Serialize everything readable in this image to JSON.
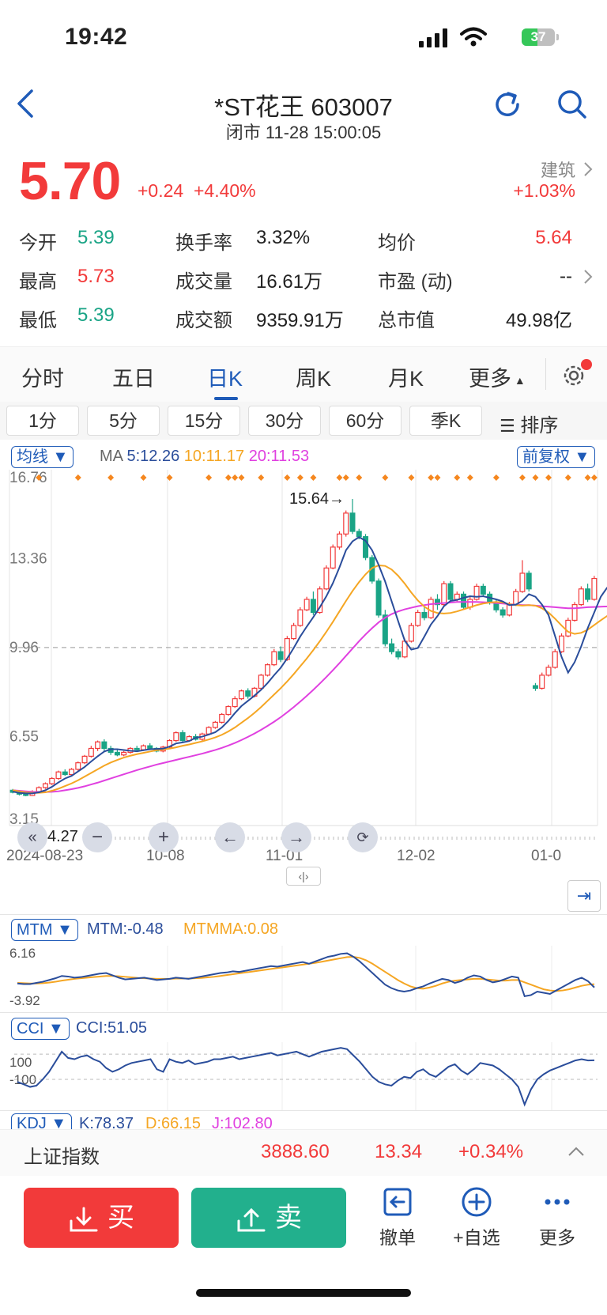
{
  "status_bar": {
    "time": "19:42",
    "battery": "37"
  },
  "header": {
    "title": "*ST花王 603007",
    "subtitle": "闭市 11-28 15:00:05"
  },
  "quote": {
    "price": "5.70",
    "change": "+0.24",
    "change_pct": "+4.40%",
    "sector_name": "建筑",
    "sector_pct": "+1.03%"
  },
  "stats": [
    {
      "label": "今开",
      "value": "5.39",
      "color": "#1aa486"
    },
    {
      "label": "换手率",
      "value": "3.32%",
      "color": "#222222"
    },
    {
      "label": "均价",
      "value": "5.64",
      "color": "#f23a3a"
    },
    {
      "label": "最高",
      "value": "5.73",
      "color": "#f23a3a"
    },
    {
      "label": "成交量",
      "value": "16.61万",
      "color": "#222222"
    },
    {
      "label": "市盈 (动)",
      "value": "--",
      "color": "#222222"
    },
    {
      "label": "最低",
      "value": "5.39",
      "color": "#1aa486"
    },
    {
      "label": "成交额",
      "value": "9359.91万",
      "color": "#222222"
    },
    {
      "label": "总市值",
      "value": "49.98亿",
      "color": "#222222"
    }
  ],
  "tabs": [
    "分时",
    "五日",
    "日K",
    "周K",
    "月K",
    "更多"
  ],
  "subtabs": [
    "1分",
    "5分",
    "15分",
    "30分",
    "60分",
    "季K",
    "排序"
  ],
  "chart_header": {
    "indicator": "均线",
    "ma_label": "MA",
    "ma5": "5:12.26",
    "ma10": "10:11.17",
    "ma20": "20:11.53",
    "adjust": "前复权"
  },
  "chart_data": {
    "type": "candlestick",
    "y_ticks": [
      "16.76",
      "13.36",
      "9.96",
      "6.55",
      "3.15"
    ],
    "ylim": [
      3.15,
      16.76
    ],
    "x_labels": [
      "2024-08-23",
      "10-08",
      "11-01",
      "12-02",
      "01-0"
    ],
    "annotations": {
      "high": "15.64→",
      "low": "←4.27",
      "high_value": 15.64,
      "low_value": 4.27
    },
    "dashed_line": 9.96,
    "series_colors": {
      "up": "#f23a3a",
      "down": "#1aa486",
      "ma5": "#2a4d9b",
      "ma10": "#f5a623",
      "ma20": "#e040e0"
    },
    "candles": [
      [
        4.5,
        4.42,
        4.55,
        4.38
      ],
      [
        4.42,
        4.35,
        4.48,
        4.3
      ],
      [
        4.35,
        4.3,
        4.4,
        4.27
      ],
      [
        4.3,
        4.45,
        4.5,
        4.28
      ],
      [
        4.45,
        4.6,
        4.65,
        4.4
      ],
      [
        4.6,
        4.75,
        4.8,
        4.55
      ],
      [
        4.75,
        4.95,
        5.0,
        4.7
      ],
      [
        4.95,
        5.2,
        5.25,
        4.9
      ],
      [
        5.2,
        5.1,
        5.3,
        5.05
      ],
      [
        5.1,
        5.3,
        5.35,
        5.05
      ],
      [
        5.3,
        5.55,
        5.6,
        5.25
      ],
      [
        5.55,
        5.8,
        5.85,
        5.5
      ],
      [
        5.8,
        6.1,
        6.2,
        5.75
      ],
      [
        6.1,
        6.35,
        6.4,
        6.0
      ],
      [
        6.35,
        6.1,
        6.45,
        6.0
      ],
      [
        6.1,
        5.95,
        6.2,
        5.85
      ],
      [
        5.95,
        5.85,
        6.05,
        5.8
      ],
      [
        5.85,
        5.95,
        6.0,
        5.8
      ],
      [
        5.95,
        6.1,
        6.15,
        5.9
      ],
      [
        6.1,
        6.05,
        6.2,
        6.0
      ],
      [
        6.05,
        6.2,
        6.25,
        6.0
      ],
      [
        6.2,
        6.1,
        6.3,
        6.05
      ],
      [
        6.1,
        6.0,
        6.15,
        5.95
      ],
      [
        6.0,
        6.15,
        6.2,
        5.95
      ],
      [
        6.15,
        6.4,
        6.45,
        6.1
      ],
      [
        6.4,
        6.7,
        6.75,
        6.35
      ],
      [
        6.7,
        6.4,
        6.8,
        6.35
      ],
      [
        6.4,
        6.55,
        6.6,
        6.35
      ],
      [
        6.55,
        6.45,
        6.65,
        6.4
      ],
      [
        6.45,
        6.65,
        6.7,
        6.4
      ],
      [
        6.65,
        6.9,
        6.95,
        6.6
      ],
      [
        6.9,
        7.1,
        7.15,
        6.85
      ],
      [
        7.1,
        7.4,
        7.45,
        7.05
      ],
      [
        7.4,
        7.7,
        7.75,
        7.35
      ],
      [
        7.7,
        8.0,
        8.1,
        7.65
      ],
      [
        8.0,
        8.3,
        8.35,
        7.95
      ],
      [
        8.3,
        8.1,
        8.4,
        8.0
      ],
      [
        8.1,
        8.4,
        8.45,
        8.05
      ],
      [
        8.4,
        8.9,
        8.95,
        8.35
      ],
      [
        8.9,
        9.3,
        9.35,
        8.85
      ],
      [
        9.3,
        9.8,
        9.9,
        9.25
      ],
      [
        9.8,
        9.5,
        10.0,
        9.4
      ],
      [
        9.5,
        10.3,
        10.4,
        9.45
      ],
      [
        10.3,
        10.8,
        10.9,
        10.25
      ],
      [
        10.8,
        11.4,
        11.5,
        10.75
      ],
      [
        11.4,
        11.8,
        11.9,
        11.35
      ],
      [
        11.8,
        11.3,
        12.1,
        11.2
      ],
      [
        11.3,
        12.2,
        12.3,
        11.25
      ],
      [
        12.2,
        13.0,
        13.1,
        12.15
      ],
      [
        13.0,
        13.8,
        13.9,
        12.95
      ],
      [
        13.8,
        14.3,
        14.4,
        13.7
      ],
      [
        14.3,
        15.1,
        15.2,
        14.2
      ],
      [
        15.1,
        14.4,
        15.64,
        14.3
      ],
      [
        14.4,
        14.2,
        14.5,
        14.1
      ],
      [
        14.2,
        13.4,
        14.3,
        13.3
      ],
      [
        13.4,
        12.5,
        13.5,
        12.4
      ],
      [
        12.5,
        11.2,
        12.6,
        11.1
      ],
      [
        11.2,
        10.1,
        11.4,
        10.0
      ],
      [
        10.1,
        9.8,
        10.3,
        9.7
      ],
      [
        9.8,
        9.6,
        9.9,
        9.5
      ],
      [
        9.6,
        10.2,
        10.3,
        9.55
      ],
      [
        10.2,
        10.8,
        10.9,
        10.15
      ],
      [
        10.8,
        11.3,
        11.4,
        10.75
      ],
      [
        11.3,
        11.1,
        11.5,
        11.0
      ],
      [
        11.1,
        11.8,
        11.9,
        11.05
      ],
      [
        11.8,
        11.6,
        12.0,
        11.4
      ],
      [
        11.6,
        12.4,
        12.5,
        11.55
      ],
      [
        12.4,
        11.8,
        12.5,
        11.7
      ],
      [
        11.8,
        12.0,
        12.1,
        11.7
      ],
      [
        12.0,
        11.5,
        12.1,
        11.4
      ],
      [
        11.5,
        11.8,
        11.9,
        11.4
      ],
      [
        11.8,
        12.3,
        12.4,
        11.75
      ],
      [
        12.3,
        12.0,
        12.4,
        11.9
      ],
      [
        12.0,
        11.7,
        12.1,
        11.6
      ],
      [
        11.7,
        11.4,
        11.8,
        11.3
      ],
      [
        11.4,
        11.2,
        11.5,
        11.1
      ],
      [
        11.2,
        11.6,
        11.7,
        11.15
      ],
      [
        11.6,
        12.1,
        12.2,
        11.55
      ],
      [
        12.1,
        12.8,
        13.3,
        12.05
      ],
      [
        12.8,
        12.2,
        12.9,
        12.1
      ],
      [
        8.5,
        8.4,
        8.6,
        8.3
      ],
      [
        8.4,
        8.9,
        9.0,
        8.35
      ],
      [
        8.9,
        9.2,
        9.3,
        8.85
      ],
      [
        9.2,
        9.8,
        9.9,
        9.15
      ],
      [
        9.8,
        10.4,
        10.5,
        9.75
      ],
      [
        10.4,
        11.0,
        11.1,
        10.35
      ],
      [
        11.0,
        11.6,
        11.7,
        10.95
      ],
      [
        11.6,
        12.2,
        12.3,
        11.55
      ],
      [
        12.2,
        11.8,
        12.4,
        11.7
      ],
      [
        11.8,
        12.6,
        12.7,
        11.75
      ]
    ],
    "ma5": [
      4.45,
      4.4,
      4.38,
      4.38,
      4.42,
      4.5,
      4.63,
      4.8,
      4.95,
      5.05,
      5.22,
      5.39,
      5.6,
      5.8,
      5.98,
      6.07,
      6.07,
      6.04,
      6.01,
      5.99,
      6.03,
      6.07,
      6.08,
      6.09,
      6.17,
      6.29,
      6.33,
      6.38,
      6.51,
      6.55,
      6.63,
      6.72,
      6.9,
      7.15,
      7.45,
      7.72,
      7.92,
      8.12,
      8.34,
      8.6,
      8.9,
      9.18,
      9.54,
      9.94,
      10.38,
      10.76,
      11.12,
      11.5,
      11.92,
      12.42,
      13.02,
      13.68,
      14.02,
      14.18,
      14.04,
      13.68,
      13.12,
      12.48,
      11.72,
      10.96,
      10.22,
      9.88,
      9.94,
      10.38,
      10.84,
      11.16,
      11.54,
      11.74,
      11.78,
      11.86,
      11.92,
      11.9,
      11.92,
      11.86,
      11.8,
      11.72,
      11.58,
      11.6,
      11.74,
      12.0,
      11.9,
      11.6,
      11.2,
      10.4,
      9.6,
      9.0,
      9.4,
      10.0,
      10.7,
      11.3,
      11.9,
      12.26
    ],
    "ma10": [
      4.5,
      4.46,
      4.42,
      4.4,
      4.4,
      4.42,
      4.48,
      4.56,
      4.66,
      4.76,
      4.88,
      5.02,
      5.16,
      5.3,
      5.44,
      5.56,
      5.66,
      5.75,
      5.82,
      5.88,
      5.93,
      5.98,
      6.03,
      6.06,
      6.09,
      6.14,
      6.2,
      6.25,
      6.31,
      6.37,
      6.44,
      6.52,
      6.62,
      6.75,
      6.9,
      7.08,
      7.26,
      7.46,
      7.68,
      7.92,
      8.16,
      8.4,
      8.66,
      8.94,
      9.24,
      9.54,
      9.86,
      10.2,
      10.56,
      10.94,
      11.34,
      11.74,
      12.12,
      12.46,
      12.76,
      13.0,
      13.1,
      13.08,
      12.94,
      12.7,
      12.4,
      12.06,
      11.76,
      11.52,
      11.36,
      11.28,
      11.26,
      11.28,
      11.34,
      11.42,
      11.5,
      11.58,
      11.64,
      11.68,
      11.7,
      11.68,
      11.62,
      11.58,
      11.56,
      11.58,
      11.56,
      11.46,
      11.3,
      11.06,
      10.8,
      10.56,
      10.48,
      10.52,
      10.64,
      10.82,
      11.0,
      11.17
    ],
    "ma20": [
      4.5,
      4.48,
      4.46,
      4.44,
      4.43,
      4.43,
      4.44,
      4.46,
      4.5,
      4.54,
      4.59,
      4.65,
      4.72,
      4.79,
      4.87,
      4.95,
      5.03,
      5.11,
      5.19,
      5.27,
      5.34,
      5.41,
      5.48,
      5.54,
      5.6,
      5.66,
      5.72,
      5.78,
      5.84,
      5.9,
      5.97,
      6.04,
      6.12,
      6.21,
      6.31,
      6.42,
      6.54,
      6.67,
      6.81,
      6.96,
      7.12,
      7.29,
      7.48,
      7.68,
      7.89,
      8.11,
      8.34,
      8.58,
      8.83,
      9.09,
      9.36,
      9.64,
      9.92,
      10.2,
      10.46,
      10.7,
      10.92,
      11.1,
      11.24,
      11.34,
      11.42,
      11.48,
      11.54,
      11.58,
      11.62,
      11.64,
      11.66,
      11.68,
      11.7,
      11.7,
      11.7,
      11.7,
      11.69,
      11.68,
      11.66,
      11.64,
      11.62,
      11.6,
      11.58,
      11.58,
      11.56,
      11.54,
      11.52,
      11.5,
      11.48,
      11.46,
      11.46,
      11.48,
      11.5,
      11.51,
      11.52,
      11.53
    ]
  },
  "mtm": {
    "name": "MTM",
    "label": "MTM:-0.48",
    "ma_label": "MTMMA:0.08",
    "top": "6.16",
    "bottom": "-3.92",
    "values": [
      0.2,
      0.1,
      0.1,
      0.3,
      0.5,
      0.8,
      1.1,
      1.5,
      1.4,
      1.2,
      1.3,
      1.5,
      1.7,
      1.9,
      2.0,
      1.6,
      1.2,
      0.9,
      1.0,
      1.1,
      1.2,
      1.0,
      0.8,
      0.9,
      1.0,
      1.2,
      1.1,
      1.0,
      1.2,
      1.4,
      1.6,
      1.8,
      2.0,
      2.1,
      2.3,
      2.2,
      2.4,
      2.6,
      2.8,
      3.0,
      3.2,
      3.1,
      3.3,
      3.5,
      3.7,
      3.9,
      3.6,
      4.0,
      4.4,
      4.8,
      5.0,
      5.3,
      5.4,
      4.8,
      4.0,
      3.0,
      2.0,
      1.0,
      0.0,
      -0.6,
      -1.0,
      -1.2,
      -1.0,
      -0.6,
      -0.3,
      0.2,
      0.6,
      1.0,
      0.8,
      0.3,
      0.6,
      1.2,
      1.6,
      1.4,
      0.8,
      0.4,
      0.6,
      1.0,
      1.4,
      1.2,
      -2.0,
      -1.8,
      -1.2,
      -1.4,
      -1.6,
      -1.0,
      -0.4,
      0.2,
      0.8,
      1.2,
      0.6,
      -0.48
    ],
    "ma": [
      0.3,
      0.25,
      0.2,
      0.2,
      0.25,
      0.35,
      0.5,
      0.7,
      0.85,
      1.0,
      1.1,
      1.2,
      1.3,
      1.4,
      1.5,
      1.5,
      1.45,
      1.35,
      1.25,
      1.15,
      1.1,
      1.05,
      1.0,
      1.0,
      1.0,
      1.05,
      1.05,
      1.05,
      1.1,
      1.15,
      1.25,
      1.35,
      1.5,
      1.65,
      1.8,
      1.95,
      2.1,
      2.25,
      2.4,
      2.55,
      2.7,
      2.85,
      3.0,
      3.15,
      3.3,
      3.45,
      3.6,
      3.75,
      3.95,
      4.15,
      4.35,
      4.55,
      4.75,
      4.8,
      4.6,
      4.2,
      3.6,
      2.9,
      2.2,
      1.5,
      0.8,
      0.2,
      -0.3,
      -0.6,
      -0.7,
      -0.5,
      -0.2,
      0.2,
      0.5,
      0.7,
      0.8,
      0.9,
      1.0,
      1.0,
      0.9,
      0.8,
      0.7,
      0.7,
      0.8,
      0.8,
      0.4,
      0.0,
      -0.4,
      -0.8,
      -1.0,
      -1.1,
      -1.0,
      -0.8,
      -0.5,
      -0.2,
      0.0,
      0.08
    ]
  },
  "cci": {
    "name": "CCI",
    "label": "CCI:51.05",
    "level_high": "100",
    "level_low": "-100",
    "values": [
      -120,
      -140,
      -160,
      -150,
      -100,
      -40,
      40,
      120,
      70,
      60,
      80,
      90,
      60,
      40,
      -10,
      -40,
      -20,
      10,
      30,
      40,
      50,
      60,
      -20,
      -40,
      60,
      40,
      30,
      50,
      20,
      30,
      40,
      60,
      60,
      70,
      80,
      60,
      70,
      80,
      90,
      100,
      110,
      90,
      100,
      110,
      120,
      100,
      80,
      100,
      120,
      130,
      140,
      150,
      140,
      90,
      40,
      -20,
      -80,
      -120,
      -140,
      -150,
      -110,
      -80,
      -90,
      -40,
      -20,
      -60,
      -80,
      -40,
      0,
      20,
      -30,
      -60,
      -20,
      30,
      20,
      10,
      -20,
      -60,
      -100,
      -160,
      -300,
      -180,
      -100,
      -60,
      -30,
      -10,
      10,
      30,
      50,
      60,
      50,
      51.05
    ]
  },
  "kdj": {
    "name": "KDJ",
    "k": "K:78.37",
    "d": "D:66.15",
    "j": "J:102.80"
  },
  "index_bar": {
    "name": "上证指数",
    "value": "3888.60",
    "change": "13.34",
    "pct": "+0.34%"
  },
  "actions": {
    "buy": "买",
    "sell": "卖",
    "cancel": "撤单",
    "watch": "+自选",
    "more": "更多"
  }
}
